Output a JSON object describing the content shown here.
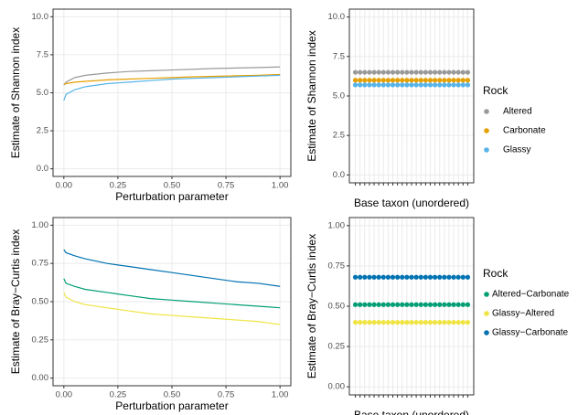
{
  "chart_data": [
    {
      "type": "line",
      "x_label": "Perturbation parameter",
      "y_label": "Estimate of Shannon index",
      "x": [
        0,
        0.01,
        0.05,
        0.1,
        0.2,
        0.3,
        0.4,
        0.5,
        0.6,
        0.7,
        0.8,
        0.9,
        1.0
      ],
      "xlim": [
        -0.05,
        1.05
      ],
      "ylim": [
        -0.5,
        10.5
      ],
      "xticks": [
        {
          "value": 0,
          "label": "0.00"
        },
        {
          "value": 0.25,
          "label": "0.25"
        },
        {
          "value": 0.5,
          "label": "0.50"
        },
        {
          "value": 0.75,
          "label": "0.75"
        },
        {
          "value": 1,
          "label": "1.00"
        }
      ],
      "yticks": [
        {
          "value": 0,
          "label": "0.0"
        },
        {
          "value": 2.5,
          "label": "2.5"
        },
        {
          "value": 5,
          "label": "5.0"
        },
        {
          "value": 7.5,
          "label": "7.5"
        },
        {
          "value": 10,
          "label": "10.0"
        }
      ],
      "grid": true,
      "series": [
        {
          "name": "Altered",
          "color": "#999999",
          "values": [
            5.5,
            5.7,
            6.0,
            6.15,
            6.3,
            6.4,
            6.45,
            6.5,
            6.55,
            6.6,
            6.63,
            6.66,
            6.7
          ]
        },
        {
          "name": "Carbonate",
          "color": "#E69F00",
          "values": [
            5.55,
            5.6,
            5.7,
            5.75,
            5.85,
            5.9,
            5.95,
            6.0,
            6.05,
            6.08,
            6.12,
            6.15,
            6.2
          ]
        },
        {
          "name": "Glassy",
          "color": "#56B4E9",
          "values": [
            4.5,
            4.9,
            5.2,
            5.4,
            5.6,
            5.7,
            5.8,
            5.9,
            5.95,
            6.0,
            6.05,
            6.1,
            6.15
          ]
        }
      ]
    },
    {
      "type": "scatter",
      "x_label": "Base taxon (unordered)",
      "y_label": "Estimate of Shannon index",
      "legend_title": "Rock",
      "categories": [
        null,
        null,
        null,
        null,
        null,
        null,
        null,
        null,
        null,
        null,
        null,
        null,
        null,
        null,
        null,
        null,
        null,
        null,
        null,
        null,
        null,
        null,
        null,
        null,
        null
      ],
      "ylim": [
        -0.5,
        10.5
      ],
      "yticks": [
        {
          "value": 0,
          "label": "0.0"
        },
        {
          "value": 2.5,
          "label": "2.5"
        },
        {
          "value": 5,
          "label": "5.0"
        },
        {
          "value": 7.5,
          "label": "7.5"
        },
        {
          "value": 10,
          "label": "10.0"
        }
      ],
      "grid": true,
      "series": [
        {
          "name": "Altered",
          "color": "#999999",
          "values": [
            6.5,
            6.5,
            6.5,
            6.5,
            6.5,
            6.5,
            6.5,
            6.5,
            6.5,
            6.5,
            6.5,
            6.5,
            6.5,
            6.5,
            6.5,
            6.5,
            6.5,
            6.5,
            6.5,
            6.5,
            6.5,
            6.5,
            6.5,
            6.5,
            6.5
          ]
        },
        {
          "name": "Carbonate",
          "color": "#E69F00",
          "values": [
            6.0,
            6.0,
            6.0,
            6.0,
            6.0,
            6.0,
            6.0,
            6.0,
            6.0,
            6.0,
            6.0,
            6.0,
            6.0,
            6.0,
            6.0,
            6.0,
            6.0,
            6.0,
            6.0,
            6.0,
            6.0,
            6.0,
            6.0,
            6.0,
            6.0
          ]
        },
        {
          "name": "Glassy",
          "color": "#56B4E9",
          "values": [
            5.7,
            5.7,
            5.7,
            5.7,
            5.7,
            5.7,
            5.7,
            5.7,
            5.7,
            5.7,
            5.7,
            5.7,
            5.7,
            5.7,
            5.7,
            5.7,
            5.7,
            5.7,
            5.7,
            5.7,
            5.7,
            5.7,
            5.7,
            5.7,
            5.7
          ]
        }
      ]
    },
    {
      "type": "line",
      "x_label": "Perturbation parameter",
      "y_label": "Estimate of Bray−Curtis index",
      "x": [
        0,
        0.01,
        0.05,
        0.1,
        0.2,
        0.3,
        0.4,
        0.5,
        0.6,
        0.7,
        0.8,
        0.9,
        1.0
      ],
      "xlim": [
        -0.05,
        1.05
      ],
      "ylim": [
        -0.05,
        1.05
      ],
      "xticks": [
        {
          "value": 0,
          "label": "0.00"
        },
        {
          "value": 0.25,
          "label": "0.25"
        },
        {
          "value": 0.5,
          "label": "0.50"
        },
        {
          "value": 0.75,
          "label": "0.75"
        },
        {
          "value": 1,
          "label": "1.00"
        }
      ],
      "yticks": [
        {
          "value": 0,
          "label": "0.00"
        },
        {
          "value": 0.25,
          "label": "0.25"
        },
        {
          "value": 0.5,
          "label": "0.50"
        },
        {
          "value": 0.75,
          "label": "0.75"
        },
        {
          "value": 1,
          "label": "1.00"
        }
      ],
      "grid": true,
      "series": [
        {
          "name": "Altered−Carbonate",
          "color": "#009E73",
          "values": [
            0.65,
            0.62,
            0.6,
            0.58,
            0.56,
            0.54,
            0.52,
            0.51,
            0.5,
            0.49,
            0.48,
            0.47,
            0.46
          ]
        },
        {
          "name": "Glassy−Altered",
          "color": "#F0E442",
          "values": [
            0.56,
            0.53,
            0.5,
            0.48,
            0.46,
            0.44,
            0.42,
            0.41,
            0.4,
            0.39,
            0.38,
            0.37,
            0.35
          ]
        },
        {
          "name": "Glassy−Carbonate",
          "color": "#0072B2",
          "values": [
            0.84,
            0.82,
            0.8,
            0.78,
            0.75,
            0.73,
            0.71,
            0.69,
            0.67,
            0.65,
            0.63,
            0.62,
            0.6
          ]
        }
      ]
    },
    {
      "type": "scatter",
      "x_label": "Base taxon (unordered)",
      "y_label": "Estimate of Bray−Curtis index",
      "legend_title": "Rock",
      "categories": [
        null,
        null,
        null,
        null,
        null,
        null,
        null,
        null,
        null,
        null,
        null,
        null,
        null,
        null,
        null,
        null,
        null,
        null,
        null,
        null,
        null,
        null,
        null,
        null,
        null
      ],
      "ylim": [
        -0.05,
        1.05
      ],
      "yticks": [
        {
          "value": 0,
          "label": "0.00"
        },
        {
          "value": 0.25,
          "label": "0.25"
        },
        {
          "value": 0.5,
          "label": "0.50"
        },
        {
          "value": 0.75,
          "label": "0.75"
        },
        {
          "value": 1,
          "label": "1.00"
        }
      ],
      "grid": true,
      "series": [
        {
          "name": "Altered−Carbonate",
          "color": "#009E73",
          "values": [
            0.51,
            0.51,
            0.51,
            0.51,
            0.51,
            0.51,
            0.51,
            0.51,
            0.51,
            0.51,
            0.51,
            0.51,
            0.51,
            0.51,
            0.51,
            0.51,
            0.51,
            0.51,
            0.51,
            0.51,
            0.51,
            0.51,
            0.51,
            0.51,
            0.51
          ]
        },
        {
          "name": "Glassy−Altered",
          "color": "#F0E442",
          "values": [
            0.4,
            0.4,
            0.4,
            0.4,
            0.4,
            0.4,
            0.4,
            0.4,
            0.4,
            0.4,
            0.4,
            0.4,
            0.4,
            0.4,
            0.4,
            0.4,
            0.4,
            0.4,
            0.4,
            0.4,
            0.4,
            0.4,
            0.4,
            0.4,
            0.4
          ]
        },
        {
          "name": "Glassy−Carbonate",
          "color": "#0072B2",
          "values": [
            0.68,
            0.68,
            0.68,
            0.68,
            0.68,
            0.68,
            0.68,
            0.68,
            0.68,
            0.68,
            0.68,
            0.68,
            0.68,
            0.68,
            0.68,
            0.68,
            0.68,
            0.68,
            0.68,
            0.68,
            0.68,
            0.68,
            0.68,
            0.68,
            0.68
          ]
        }
      ]
    }
  ]
}
